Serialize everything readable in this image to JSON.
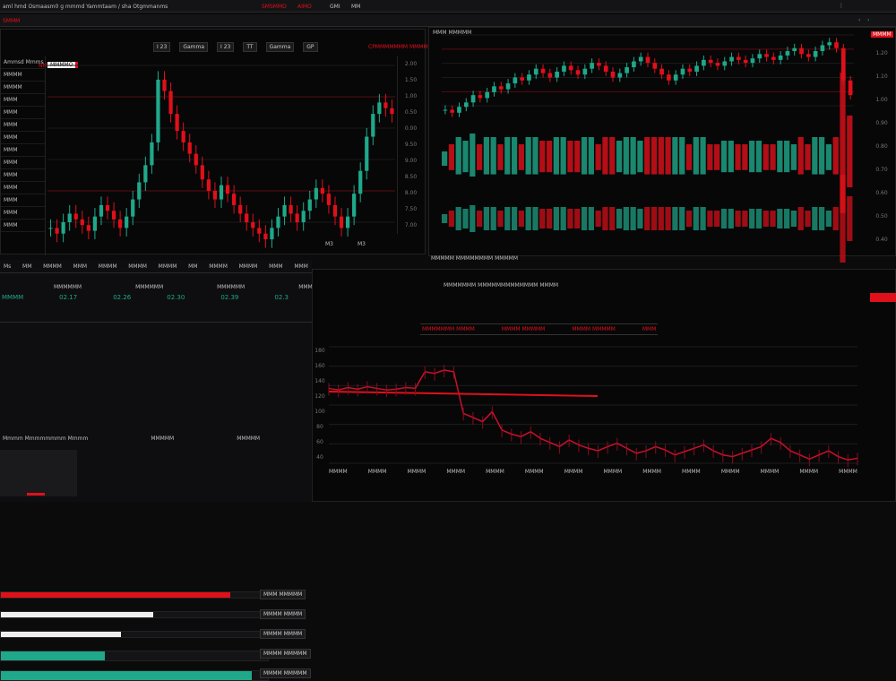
{
  "topbar": {
    "title": "aml hmd Osmaasm0 g mmmd Yammtaam / sha Otgmmanms",
    "tab_red_1": "SMSMMO",
    "tab_red_2": "AIMO",
    "tab_1": "GMI",
    "tab_2": "MM"
  },
  "subbar": {
    "label": "SMMM"
  },
  "toolbar": {
    "items": [
      "I 23",
      "Gamma",
      "I 23",
      "TT",
      "Gamma",
      "GP"
    ],
    "right": "CPMMMMMMM MMMMM"
  },
  "left_chart": {
    "symbol": "MMMMO",
    "badge": "NM",
    "price_labels": [
      "2.00",
      "1.50",
      "1.00",
      "0.50",
      "0.00",
      "9.50",
      "9.00",
      "8.50",
      "8.00",
      "7.50",
      "7.00"
    ],
    "bottom_labels": [
      "M3",
      "M3"
    ]
  },
  "right_chart": {
    "header": "MMM MMMMM",
    "price_labels": [
      "1.20",
      "1.10",
      "1.00",
      "0.90",
      "0.80",
      "0.70",
      "0.60",
      "0.50",
      "0.40"
    ],
    "footer": "MMMMM MMMMMMMM MMMMM",
    "badge": "MMMM"
  },
  "sidebar": {
    "items": [
      "Ammsd Mmms",
      "MMMM",
      "MMMM",
      "MMM",
      "MMM",
      "MMM",
      "MMM",
      "MMM",
      "MMM",
      "MMM",
      "MMM",
      "MMM",
      "MMM",
      "MMM"
    ]
  },
  "stats": {
    "tabs": [
      "Ms",
      "MM",
      "MMMM",
      "MMM",
      "MMMM",
      "MMMM",
      "MMMM",
      "MM",
      "MMMM",
      "MMMM",
      "MMM",
      "MMM"
    ],
    "headers": [
      "MMMMMM",
      "MMMMMM",
      "MMMMMM",
      "MMMMM"
    ],
    "values": [
      "MMMM",
      "02.17",
      "02.26",
      "02.30",
      "02.39",
      "02.3"
    ],
    "rows": [
      {
        "label": "MMM MMMMM",
        "fill": 0.86,
        "color": "#e0101a"
      },
      {
        "label": "MMMM MMMM",
        "fill": 0.57,
        "color": "#eeeeee"
      },
      {
        "label": "MMMM MMMM",
        "fill": 0.45,
        "color": "#eeeeee"
      },
      {
        "label": "MMMM MMMMM",
        "fill": 0.39,
        "color": "#1fa88a"
      },
      {
        "label": "MMMM MMMMM",
        "fill": 0.94,
        "color": "#1fa88a"
      }
    ],
    "footer": [
      "Mmmm Mmmmmmmm Mmmm",
      "MMMMM",
      "MMMMM"
    ]
  },
  "bottom_chart": {
    "title": "MMMMMMM MMMMMMMMMMMMM MMMM",
    "toolbar": [
      "MMMMMMM MMMM",
      "MMMM MMMMM",
      "MMMM MMMMM",
      "MMM"
    ],
    "price_labels": [
      "180",
      "160",
      "140",
      "120",
      "100",
      "80",
      "60",
      "40"
    ],
    "time_labels": [
      "MMMM",
      "MMMM",
      "MMMM",
      "MMMM",
      "MMMM",
      "MMMM",
      "MMMM",
      "MMMM",
      "MMMM",
      "MMMM",
      "MMMM",
      "MMMM",
      "MMMM",
      "MMMM"
    ]
  },
  "colors": {
    "up": "#1fa88a",
    "down": "#e0101a",
    "bg": "#0b0b0c"
  },
  "chart_data": [
    {
      "type": "candlestick",
      "closes": [
        30,
        28,
        32,
        35,
        33,
        31,
        29,
        34,
        38,
        36,
        33,
        30,
        34,
        40,
        46,
        52,
        60,
        82,
        78,
        70,
        64,
        60,
        56,
        52,
        47,
        43,
        40,
        45,
        42,
        38,
        35,
        32,
        30,
        28,
        26,
        30,
        34,
        38,
        35,
        32,
        36,
        40,
        44,
        42,
        38,
        34,
        30,
        34,
        42,
        50,
        62,
        70,
        74,
        72,
        70
      ]
    },
    {
      "type": "candlestick",
      "closes": [
        50,
        48,
        52,
        55,
        60,
        58,
        62,
        66,
        64,
        68,
        72,
        70,
        74,
        78,
        75,
        72,
        76,
        80,
        77,
        74,
        78,
        82,
        80,
        76,
        72,
        75,
        79,
        83,
        86,
        82,
        78,
        74,
        70,
        74,
        78,
        76,
        80,
        84,
        82,
        80,
        83,
        86,
        84,
        82,
        85,
        88,
        86,
        84,
        87,
        90,
        92,
        88,
        86,
        90,
        94,
        96,
        92,
        70,
        60
      ]
    },
    {
      "type": "line",
      "closes": [
        130,
        128,
        131,
        129,
        132,
        130,
        128,
        129,
        131,
        130,
        150,
        148,
        152,
        150,
        100,
        95,
        90,
        102,
        80,
        75,
        72,
        78,
        70,
        65,
        60,
        68,
        62,
        58,
        55,
        60,
        64,
        58,
        52,
        55,
        60,
        56,
        50,
        54,
        58,
        62,
        55,
        50,
        48,
        52,
        56,
        60,
        70,
        65,
        55,
        50,
        45,
        50,
        55,
        48,
        44,
        46
      ]
    }
  ]
}
